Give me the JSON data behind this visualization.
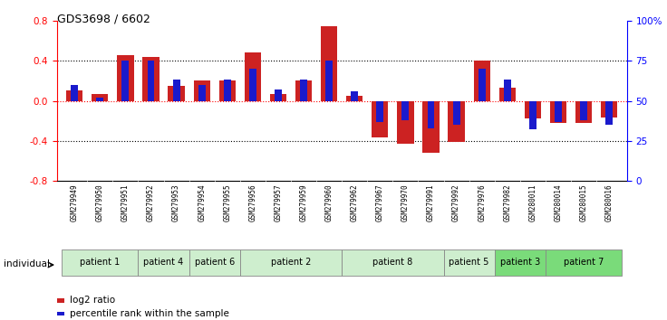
{
  "title": "GDS3698 / 6602",
  "samples": [
    "GSM279949",
    "GSM279950",
    "GSM279951",
    "GSM279952",
    "GSM279953",
    "GSM279954",
    "GSM279955",
    "GSM279956",
    "GSM279957",
    "GSM279959",
    "GSM279960",
    "GSM279962",
    "GSM279967",
    "GSM279970",
    "GSM279991",
    "GSM279992",
    "GSM279976",
    "GSM279982",
    "GSM280011",
    "GSM280014",
    "GSM280015",
    "GSM280016"
  ],
  "log2_ratio": [
    0.1,
    0.07,
    0.46,
    0.44,
    0.15,
    0.2,
    0.2,
    0.48,
    0.07,
    0.2,
    0.75,
    0.05,
    -0.37,
    -0.43,
    -0.52,
    -0.41,
    0.4,
    0.13,
    -0.18,
    -0.22,
    -0.22,
    -0.17
  ],
  "percentile_rank_raw": [
    60,
    52,
    75,
    75,
    63,
    60,
    63,
    70,
    57,
    63,
    75,
    56,
    37,
    38,
    33,
    35,
    70,
    63,
    32,
    37,
    38,
    35
  ],
  "patients": [
    {
      "label": "patient 1",
      "start": 0,
      "end": 3
    },
    {
      "label": "patient 4",
      "start": 3,
      "end": 5
    },
    {
      "label": "patient 6",
      "start": 5,
      "end": 7
    },
    {
      "label": "patient 2",
      "start": 7,
      "end": 11
    },
    {
      "label": "patient 8",
      "start": 11,
      "end": 15
    },
    {
      "label": "patient 5",
      "start": 15,
      "end": 17
    },
    {
      "label": "patient 3",
      "start": 17,
      "end": 19
    },
    {
      "label": "patient 7",
      "start": 19,
      "end": 22
    }
  ],
  "patient_colors": {
    "patient 1": "#ceeece",
    "patient 4": "#ceeece",
    "patient 6": "#ceeece",
    "patient 2": "#ceeece",
    "patient 8": "#ceeece",
    "patient 5": "#ceeece",
    "patient 3": "#7adb7a",
    "patient 7": "#7adb7a"
  },
  "ylim": [
    -0.8,
    0.8
  ],
  "yticks_left": [
    -0.8,
    -0.4,
    0.0,
    0.4,
    0.8
  ],
  "ytick_labels_right": [
    "0",
    "25",
    "50",
    "75",
    "100%"
  ],
  "bar_color_red": "#cc2222",
  "bar_color_blue": "#1a1acc",
  "legend_red": "log2 ratio",
  "legend_blue": "percentile rank within the sample",
  "individual_label": "individual",
  "xticklabel_bg": "#d4d4d4"
}
